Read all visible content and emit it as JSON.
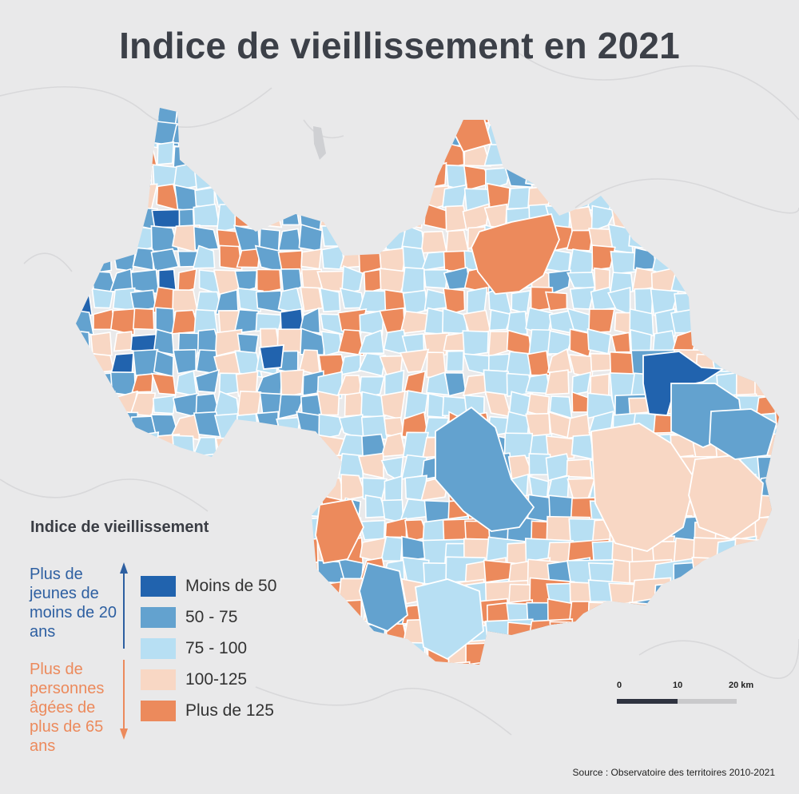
{
  "title": "Indice de vieillissement en 2021",
  "legend": {
    "title": "Indice de vieillissement",
    "side_top": "Plus de jeunes de moins de 20 ans",
    "side_bottom": "Plus de personnes âgées de plus de 65 ans",
    "items": [
      {
        "label": "Moins de 50",
        "color": "#2163ae"
      },
      {
        "label": "50 - 75",
        "color": "#63a2cf"
      },
      {
        "label": "75 - 100",
        "color": "#b7dff3"
      },
      {
        "label": "100-125",
        "color": "#f8d7c4"
      },
      {
        "label": "Plus de 125",
        "color": "#ec8a5c"
      }
    ],
    "arrow_top_color": "#2d5fa1",
    "arrow_bottom_color": "#ec8a5c"
  },
  "scale": {
    "t0": "0",
    "t1": "10",
    "t2": "20 km"
  },
  "source": "Source : Observatoire des territoires 2010-2021"
}
